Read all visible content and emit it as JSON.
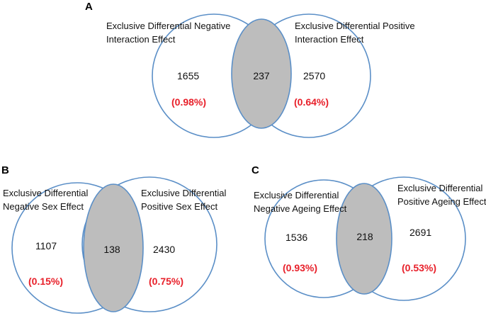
{
  "colors": {
    "circle_stroke": "#5b8fc7",
    "overlap_fill": "#bdbdbd",
    "percent_text": "#e8202a"
  },
  "panels": [
    {
      "letter": "A",
      "left_label_line1": "Exclusive Differential Negative",
      "left_label_line2": "Interaction Effect",
      "right_label_line1": "Exclusive Differential Positive",
      "right_label_line2": "Interaction Effect",
      "left_count": "1655",
      "overlap_count": "237",
      "right_count": "2570",
      "left_pct": "(0.98%)",
      "right_pct": "(0.64%)"
    },
    {
      "letter": "B",
      "left_label_line1": "Exclusive Differential",
      "left_label_line2": "Negative Sex Effect",
      "right_label_line1": "Exclusive Differential",
      "right_label_line2": "Positive Sex Effect",
      "left_count": "1107",
      "overlap_count": "138",
      "right_count": "2430",
      "left_pct": "(0.15%)",
      "right_pct": "(0.75%)"
    },
    {
      "letter": "C",
      "left_label_line1": "Exclusive Differential",
      "left_label_line2": "Negative Ageing Effect",
      "right_label_line1": "Exclusive Differential",
      "right_label_line2": "Positive Ageing Effect",
      "left_count": "1536",
      "overlap_count": "218",
      "right_count": "2691",
      "left_pct": "(0.93%)",
      "right_pct": "(0.53%)"
    }
  ]
}
